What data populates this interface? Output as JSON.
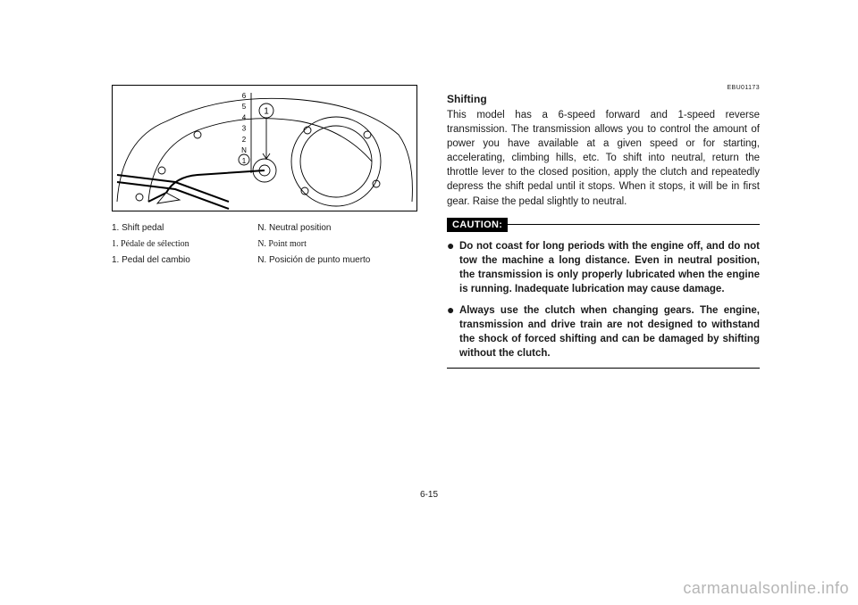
{
  "figure": {
    "gear_labels": [
      "6",
      "5",
      "4",
      "3",
      "2",
      "N",
      "1"
    ],
    "callout_number": "1",
    "gear_label_fontsize": 8,
    "gear_label_fill": "#000000",
    "stroke_color": "#000000",
    "stroke_width": 0.9,
    "background": "#ffffff",
    "circle_fill": "#ffffff"
  },
  "legend": {
    "rows": [
      {
        "left_num": "1.",
        "left_text": "Shift pedal",
        "right_num": "N.",
        "right_text": "Neutral position",
        "style": "sans"
      },
      {
        "left_num": "1.",
        "left_text": "Pédale de sélection",
        "right_num": "N.",
        "right_text": "Point mort",
        "style": "serif"
      },
      {
        "left_num": "1.",
        "left_text": "Pedal del cambio",
        "right_num": "N.",
        "right_text": "Posición de punto muerto",
        "style": "sans"
      }
    ]
  },
  "refcode": "EBU01173",
  "heading": "Shifting",
  "body": "This model has a 6-speed forward and 1-speed reverse transmission. The transmission allows you to control the amount of power you have available at a given speed or for starting, accelerating, climbing hills, etc. To shift into neutral, return the throttle lever to the closed position, apply the clutch and repeatedly depress the shift pedal until it stops. When it stops, it will be in first gear. Raise the pedal slightly to neutral.",
  "caution": {
    "label": "CAUTION:",
    "items": [
      "Do not coast for long periods with the engine off, and do not tow the machine a long distance. Even in neutral position, the transmission is only properly lubricated when the engine is running. Inadequate lubrication may cause damage.",
      "Always use the clutch when changing gears. The engine, transmission and drive train are not designed to withstand the shock of forced shifting and can be damaged by shifting without the clutch."
    ]
  },
  "page_number": "6-15",
  "watermark": "carmanualsonline.info",
  "colors": {
    "text": "#1a1a1a",
    "rule": "#000000",
    "watermark": "rgba(120,120,120,0.55)"
  }
}
